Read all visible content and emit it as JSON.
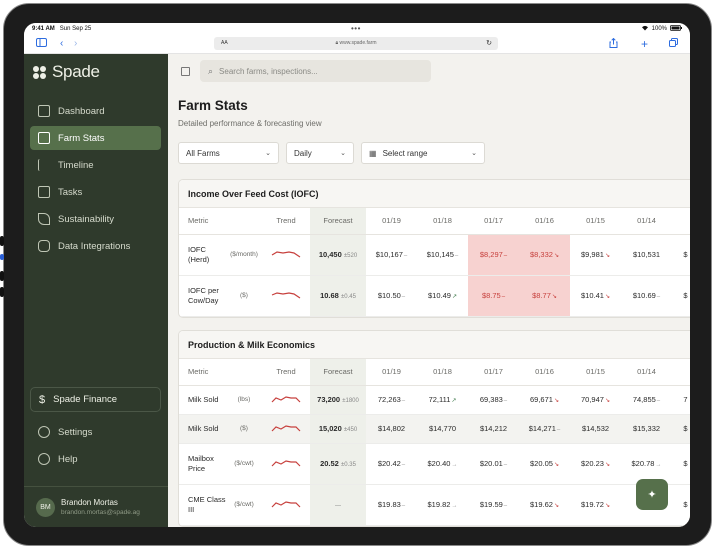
{
  "status": {
    "time": "9:41 AM",
    "date": "Sun Sep 25",
    "battery": "100%"
  },
  "browser": {
    "aa": "AA",
    "url": "www.spade.farm"
  },
  "app": {
    "name": "Spade"
  },
  "sidebar": {
    "items": [
      {
        "label": "Dashboard",
        "icon": "grid-icon"
      },
      {
        "label": "Farm Stats",
        "icon": "table-icon",
        "active": true
      },
      {
        "label": "Timeline",
        "icon": "flag-icon"
      },
      {
        "label": "Tasks",
        "icon": "clipboard-icon"
      },
      {
        "label": "Sustainability",
        "icon": "leaf-icon"
      },
      {
        "label": "Data Integrations",
        "icon": "database-icon"
      }
    ],
    "finance": "Spade Finance",
    "settings": "Settings",
    "help": "Help",
    "user": {
      "initials": "BM",
      "name": "Brandon Mortas",
      "email": "brandon.mortas@spade.ag"
    }
  },
  "search": {
    "placeholder": "Search farms, inspections..."
  },
  "page": {
    "title": "Farm Stats",
    "subtitle": "Detailed performance & forecasting view"
  },
  "filters": {
    "farms": "All Farms",
    "period": "Daily",
    "range": "Select range"
  },
  "columns": {
    "metric": "Metric",
    "trend": "Trend",
    "forecast": "Forecast",
    "dates": [
      "01/19",
      "01/18",
      "01/17",
      "01/16",
      "01/15",
      "01/14"
    ]
  },
  "iofc": {
    "title": "Income Over Feed Cost (IOFC)",
    "rows": [
      {
        "name": "IOFC (Herd)",
        "unit": "($/month)",
        "forecast": "10,450",
        "pm": "±520",
        "vals": [
          "$10,167",
          "$10,145",
          "$8,297",
          "$8,332",
          "$9,981",
          "$10,531"
        ],
        "tail": "$"
      },
      {
        "name": "IOFC per Cow/Day",
        "unit": "($)",
        "forecast": "10.68",
        "pm": "±0.45",
        "vals": [
          "$10.50",
          "$10.49",
          "$8.75",
          "$8.77",
          "$10.41",
          "$10.69"
        ],
        "tail": "$"
      }
    ]
  },
  "production": {
    "title": "Production & Milk Economics",
    "rows": [
      {
        "name": "Milk Sold",
        "unit": "(lbs)",
        "forecast": "73,200",
        "pm": "±1800",
        "vals": [
          "72,263",
          "72,111",
          "69,383",
          "69,671",
          "70,947",
          "74,855"
        ],
        "tail": "7"
      },
      {
        "name": "Milk Sold",
        "unit": "($)",
        "forecast": "15,020",
        "pm": "±450",
        "vals": [
          "$14,802",
          "$14,770",
          "$14,212",
          "$14,271",
          "$14,532",
          "$15,332"
        ],
        "tail": "$"
      },
      {
        "name": "Mailbox Price",
        "unit": "($/cwt)",
        "forecast": "20.52",
        "pm": "±0.35",
        "vals": [
          "$20.42",
          "$20.40",
          "$20.01",
          "$20.05",
          "$20.23",
          "$20.78"
        ],
        "tail": "$"
      },
      {
        "name": "CME Class III",
        "unit": "($/cwt)",
        "forecast": "—",
        "pm": "",
        "vals": [
          "$19.83",
          "$19.82",
          "$19.59",
          "$19.62",
          "$19.72",
          ""
        ],
        "tail": "$"
      }
    ]
  }
}
